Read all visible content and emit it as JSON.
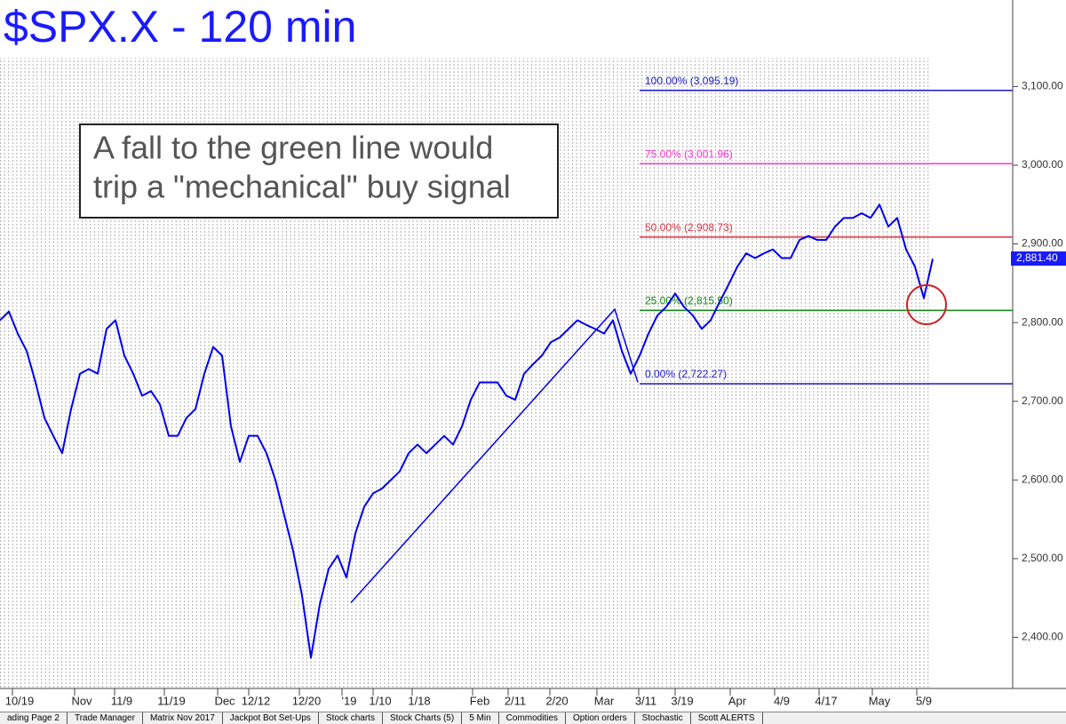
{
  "chart_data": {
    "type": "line",
    "title": "$SPX.X - 120 min",
    "annotation": [
      "A fall to the green line would",
      "trip a \"mechanical\" buy signal"
    ],
    "xlim": [
      0,
      114
    ],
    "ylim": [
      2335,
      3210
    ],
    "xticks": [
      {
        "value": 2.2,
        "label": "10/19"
      },
      {
        "value": 9.2,
        "label": "Nov"
      },
      {
        "value": 13.7,
        "label": "11/9"
      },
      {
        "value": 19.3,
        "label": "11/19"
      },
      {
        "value": 25.3,
        "label": "Dec"
      },
      {
        "value": 28.8,
        "label": "12/12"
      },
      {
        "value": 34.5,
        "label": "12/20"
      },
      {
        "value": 39.3,
        "label": "'19"
      },
      {
        "value": 42.8,
        "label": "1/10"
      },
      {
        "value": 47.2,
        "label": "1/18"
      },
      {
        "value": 54,
        "label": "Feb"
      },
      {
        "value": 58,
        "label": "2/11"
      },
      {
        "value": 62.7,
        "label": "2/20"
      },
      {
        "value": 68,
        "label": "Mar"
      },
      {
        "value": 72.7,
        "label": "3/11"
      },
      {
        "value": 76.8,
        "label": "3/19"
      },
      {
        "value": 83,
        "label": "Apr"
      },
      {
        "value": 88,
        "label": "4/9"
      },
      {
        "value": 93,
        "label": "4/17"
      },
      {
        "value": 99,
        "label": "May"
      },
      {
        "value": 104,
        "label": "5/9"
      }
    ],
    "yticks": [
      {
        "value": 2400,
        "label": "2,400.00"
      },
      {
        "value": 2500,
        "label": "2,500.00"
      },
      {
        "value": 2600,
        "label": "2,600.00"
      },
      {
        "value": 2700,
        "label": "2,700.00"
      },
      {
        "value": 2800,
        "label": "2,800.00"
      },
      {
        "value": 2900,
        "label": "2,900.00"
      },
      {
        "value": 3000,
        "label": "3,000.00"
      },
      {
        "value": 3100,
        "label": "3,100.00"
      }
    ],
    "series": [
      {
        "color": "#0000ee",
        "x": [
          0,
          1,
          2,
          3,
          4,
          5,
          6,
          7,
          8,
          9,
          10,
          11,
          12,
          13,
          14,
          15,
          16,
          17,
          18,
          19,
          20,
          21,
          22,
          23,
          24,
          25,
          26,
          27,
          28,
          29,
          30,
          31,
          32,
          33,
          34,
          35,
          36,
          37,
          38,
          39,
          40,
          41,
          42,
          43,
          44,
          45,
          46,
          47,
          48,
          49,
          50,
          51,
          52,
          53,
          54,
          55,
          56,
          57,
          58,
          59,
          60,
          61,
          62,
          63,
          64,
          65,
          66,
          67,
          68,
          69,
          70,
          71,
          72,
          73,
          74,
          75,
          76,
          77,
          78,
          79,
          80,
          81,
          82,
          83,
          84,
          85,
          86,
          87,
          88,
          89,
          90,
          91,
          92,
          93,
          94,
          95,
          96,
          97,
          98,
          99,
          100,
          101,
          102,
          103,
          104,
          105
        ],
        "values": [
          2803,
          2814,
          2786,
          2764,
          2724,
          2679,
          2656,
          2634,
          2690,
          2735,
          2741,
          2735,
          2792,
          2803,
          2758,
          2735,
          2707,
          2713,
          2696,
          2656,
          2656,
          2679,
          2690,
          2735,
          2769,
          2758,
          2668,
          2623,
          2656,
          2656,
          2634,
          2600,
          2555,
          2510,
          2453,
          2374,
          2442,
          2487,
          2504,
          2476,
          2532,
          2566,
          2583,
          2589,
          2600,
          2611,
          2634,
          2645,
          2634,
          2645,
          2656,
          2645,
          2668,
          2702,
          2724,
          2724,
          2724,
          2707,
          2702,
          2735,
          2747,
          2758,
          2775,
          2781,
          2792,
          2803,
          2797,
          2792,
          2786,
          2803,
          2764,
          2735,
          2758,
          2786,
          2809,
          2820,
          2837,
          2820,
          2809,
          2792,
          2803,
          2826,
          2848,
          2871,
          2888,
          2882,
          2888,
          2893,
          2882,
          2882,
          2905,
          2910,
          2905,
          2905,
          2922,
          2933,
          2933,
          2939,
          2933,
          2950,
          2922,
          2933,
          2893,
          2871,
          2831,
          2881
        ]
      }
    ],
    "trendline": {
      "color": "#0000ee",
      "x": [
        39.5,
        69.2,
        71.8
      ],
      "y": [
        2444,
        2817,
        2724
      ]
    },
    "levels": [
      {
        "value": 3095.19,
        "label": "100.00% (3,095.19)",
        "color": "#1a1acc",
        "x_start": 72
      },
      {
        "value": 3001.96,
        "label": "75.00% (3,001.96)",
        "color": "#ff33cc",
        "x_start": 72
      },
      {
        "value": 2908.73,
        "label": "50.00% (2,908.73)",
        "color": "#dd3344",
        "x_start": 72
      },
      {
        "value": 2815.5,
        "label": "25.00% (2,815.50)",
        "color": "#118811",
        "x_start": 72
      },
      {
        "value": 2722.27,
        "label": "0.00% (2,722.27)",
        "color": "#1a1acc",
        "x_start": 72
      }
    ],
    "last_price": {
      "value": 2881.4,
      "label": "2,881.40",
      "color": "#1a1aff"
    }
  },
  "tabs": [
    "ading Page 2",
    "Trade Manager",
    "Matrix Nov 2017",
    "Jackpot Bot Set-Ups",
    "Stock charts",
    "Stock Charts (5)",
    "5 Min",
    "Commodities",
    "Option orders",
    "Stochastic",
    "Scott ALERTS"
  ]
}
